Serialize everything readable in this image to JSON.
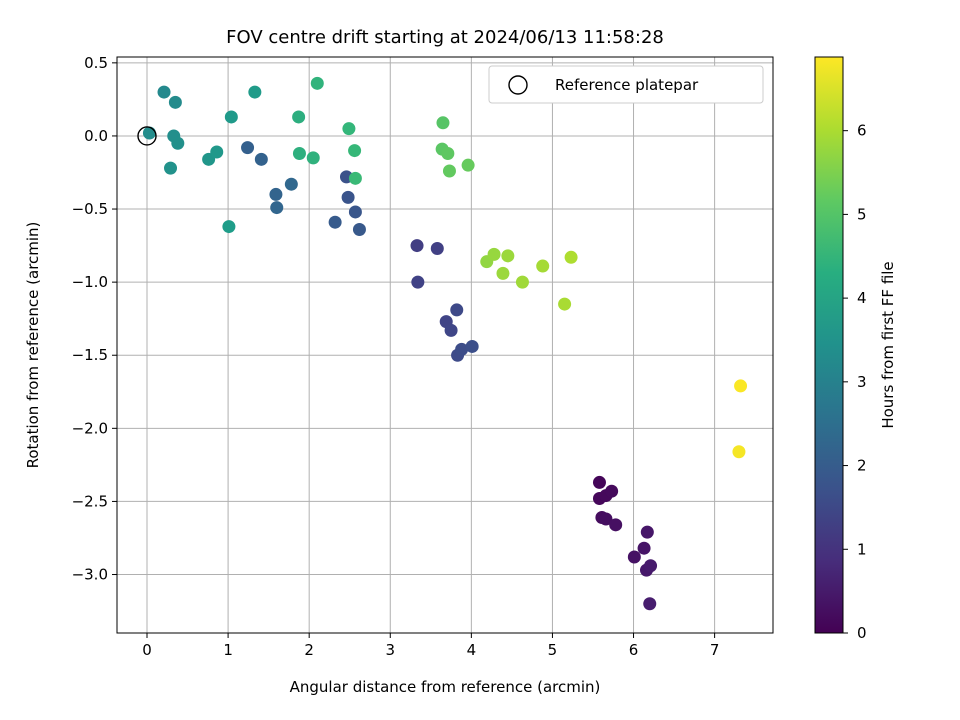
{
  "chart_data": {
    "type": "scatter",
    "title": "FOV centre drift starting at 2024/06/13 11:58:28",
    "xlabel": "Angular distance from reference (arcmin)",
    "ylabel": "Rotation from reference (arcmin)",
    "xlim": [
      -0.37,
      7.72
    ],
    "ylim": [
      -3.4,
      0.54
    ],
    "xticks": [
      0,
      1,
      2,
      3,
      4,
      5,
      6,
      7
    ],
    "xtick_labels": [
      "0",
      "1",
      "2",
      "3",
      "4",
      "5",
      "6",
      "7"
    ],
    "yticks": [
      0.5,
      0.0,
      -0.5,
      -1.0,
      -1.5,
      -2.0,
      -2.5,
      -3.0
    ],
    "ytick_labels": [
      "0.5",
      "0.0",
      "−0.5",
      "−1.0",
      "−1.5",
      "−2.0",
      "−2.5",
      "−3.0"
    ],
    "grid": true,
    "legend": {
      "label": "Reference platepar",
      "location": "top-right"
    },
    "reference_point": {
      "x": 0.0,
      "y": 0.0
    },
    "colorbar": {
      "label": "Hours from first FF file",
      "colormap": "viridis",
      "range": [
        0,
        6.88
      ],
      "ticks": [
        0,
        1,
        2,
        3,
        4,
        5,
        6
      ],
      "tick_labels": [
        "0",
        "1",
        "2",
        "3",
        "4",
        "5",
        "6"
      ]
    },
    "points": [
      {
        "x": 5.58,
        "y": -2.37,
        "c": 0.08
      },
      {
        "x": 5.58,
        "y": -2.48,
        "c": 0.12
      },
      {
        "x": 5.66,
        "y": -2.46,
        "c": 0.15
      },
      {
        "x": 5.73,
        "y": -2.43,
        "c": 0.18
      },
      {
        "x": 5.61,
        "y": -2.61,
        "c": 0.22
      },
      {
        "x": 5.66,
        "y": -2.62,
        "c": 0.26
      },
      {
        "x": 5.78,
        "y": -2.66,
        "c": 0.3
      },
      {
        "x": 6.01,
        "y": -2.88,
        "c": 0.34
      },
      {
        "x": 6.13,
        "y": -2.82,
        "c": 0.38
      },
      {
        "x": 6.17,
        "y": -2.71,
        "c": 0.42
      },
      {
        "x": 6.16,
        "y": -2.97,
        "c": 0.46
      },
      {
        "x": 6.21,
        "y": -2.94,
        "c": 0.5
      },
      {
        "x": 6.2,
        "y": -3.2,
        "c": 0.55
      },
      {
        "x": 3.33,
        "y": -0.75,
        "c": 1.25
      },
      {
        "x": 3.58,
        "y": -0.77,
        "c": 1.3
      },
      {
        "x": 3.34,
        "y": -1.0,
        "c": 1.35
      },
      {
        "x": 3.69,
        "y": -1.27,
        "c": 1.4
      },
      {
        "x": 3.75,
        "y": -1.33,
        "c": 1.45
      },
      {
        "x": 3.82,
        "y": -1.19,
        "c": 1.5
      },
      {
        "x": 3.83,
        "y": -1.5,
        "c": 1.55
      },
      {
        "x": 3.88,
        "y": -1.46,
        "c": 1.6
      },
      {
        "x": 4.01,
        "y": -1.44,
        "c": 1.65
      },
      {
        "x": 2.46,
        "y": -0.28,
        "c": 1.72
      },
      {
        "x": 2.48,
        "y": -0.42,
        "c": 1.78
      },
      {
        "x": 2.57,
        "y": -0.52,
        "c": 1.84
      },
      {
        "x": 2.62,
        "y": -0.64,
        "c": 1.9
      },
      {
        "x": 2.32,
        "y": -0.59,
        "c": 1.95
      },
      {
        "x": 1.24,
        "y": -0.08,
        "c": 2.1
      },
      {
        "x": 1.41,
        "y": -0.16,
        "c": 2.15
      },
      {
        "x": 1.59,
        "y": -0.4,
        "c": 2.2
      },
      {
        "x": 1.6,
        "y": -0.49,
        "c": 2.25
      },
      {
        "x": 1.78,
        "y": -0.33,
        "c": 2.3
      },
      {
        "x": 0.21,
        "y": 0.3,
        "c": 3.25
      },
      {
        "x": 0.35,
        "y": 0.23,
        "c": 3.3
      },
      {
        "x": 0.03,
        "y": 0.02,
        "c": 3.35
      },
      {
        "x": 0.33,
        "y": 0.0,
        "c": 3.4
      },
      {
        "x": 0.38,
        "y": -0.05,
        "c": 3.45
      },
      {
        "x": 0.29,
        "y": -0.22,
        "c": 3.5
      },
      {
        "x": 0.76,
        "y": -0.16,
        "c": 3.6
      },
      {
        "x": 0.86,
        "y": -0.11,
        "c": 3.65
      },
      {
        "x": 1.04,
        "y": 0.13,
        "c": 3.7
      },
      {
        "x": 1.33,
        "y": 0.3,
        "c": 3.75
      },
      {
        "x": 1.01,
        "y": -0.62,
        "c": 3.8
      },
      {
        "x": 1.87,
        "y": 0.13,
        "c": 4.3
      },
      {
        "x": 1.88,
        "y": -0.12,
        "c": 4.35
      },
      {
        "x": 2.05,
        "y": -0.15,
        "c": 4.4
      },
      {
        "x": 2.1,
        "y": 0.36,
        "c": 4.45
      },
      {
        "x": 2.49,
        "y": 0.05,
        "c": 4.55
      },
      {
        "x": 2.56,
        "y": -0.1,
        "c": 4.6
      },
      {
        "x": 2.57,
        "y": -0.29,
        "c": 4.65
      },
      {
        "x": 3.65,
        "y": 0.09,
        "c": 5.05
      },
      {
        "x": 3.64,
        "y": -0.09,
        "c": 5.1
      },
      {
        "x": 3.71,
        "y": -0.12,
        "c": 5.15
      },
      {
        "x": 3.73,
        "y": -0.24,
        "c": 5.2
      },
      {
        "x": 3.96,
        "y": -0.2,
        "c": 5.25
      },
      {
        "x": 4.19,
        "y": -0.86,
        "c": 5.75
      },
      {
        "x": 4.28,
        "y": -0.81,
        "c": 5.8
      },
      {
        "x": 4.45,
        "y": -0.82,
        "c": 5.85
      },
      {
        "x": 4.39,
        "y": -0.94,
        "c": 5.85
      },
      {
        "x": 4.63,
        "y": -1.0,
        "c": 5.9
      },
      {
        "x": 4.88,
        "y": -0.89,
        "c": 5.95
      },
      {
        "x": 5.15,
        "y": -1.15,
        "c": 6.0
      },
      {
        "x": 5.23,
        "y": -0.83,
        "c": 6.05
      },
      {
        "x": 7.32,
        "y": -1.71,
        "c": 6.85
      },
      {
        "x": 7.3,
        "y": -2.16,
        "c": 6.8
      }
    ]
  }
}
